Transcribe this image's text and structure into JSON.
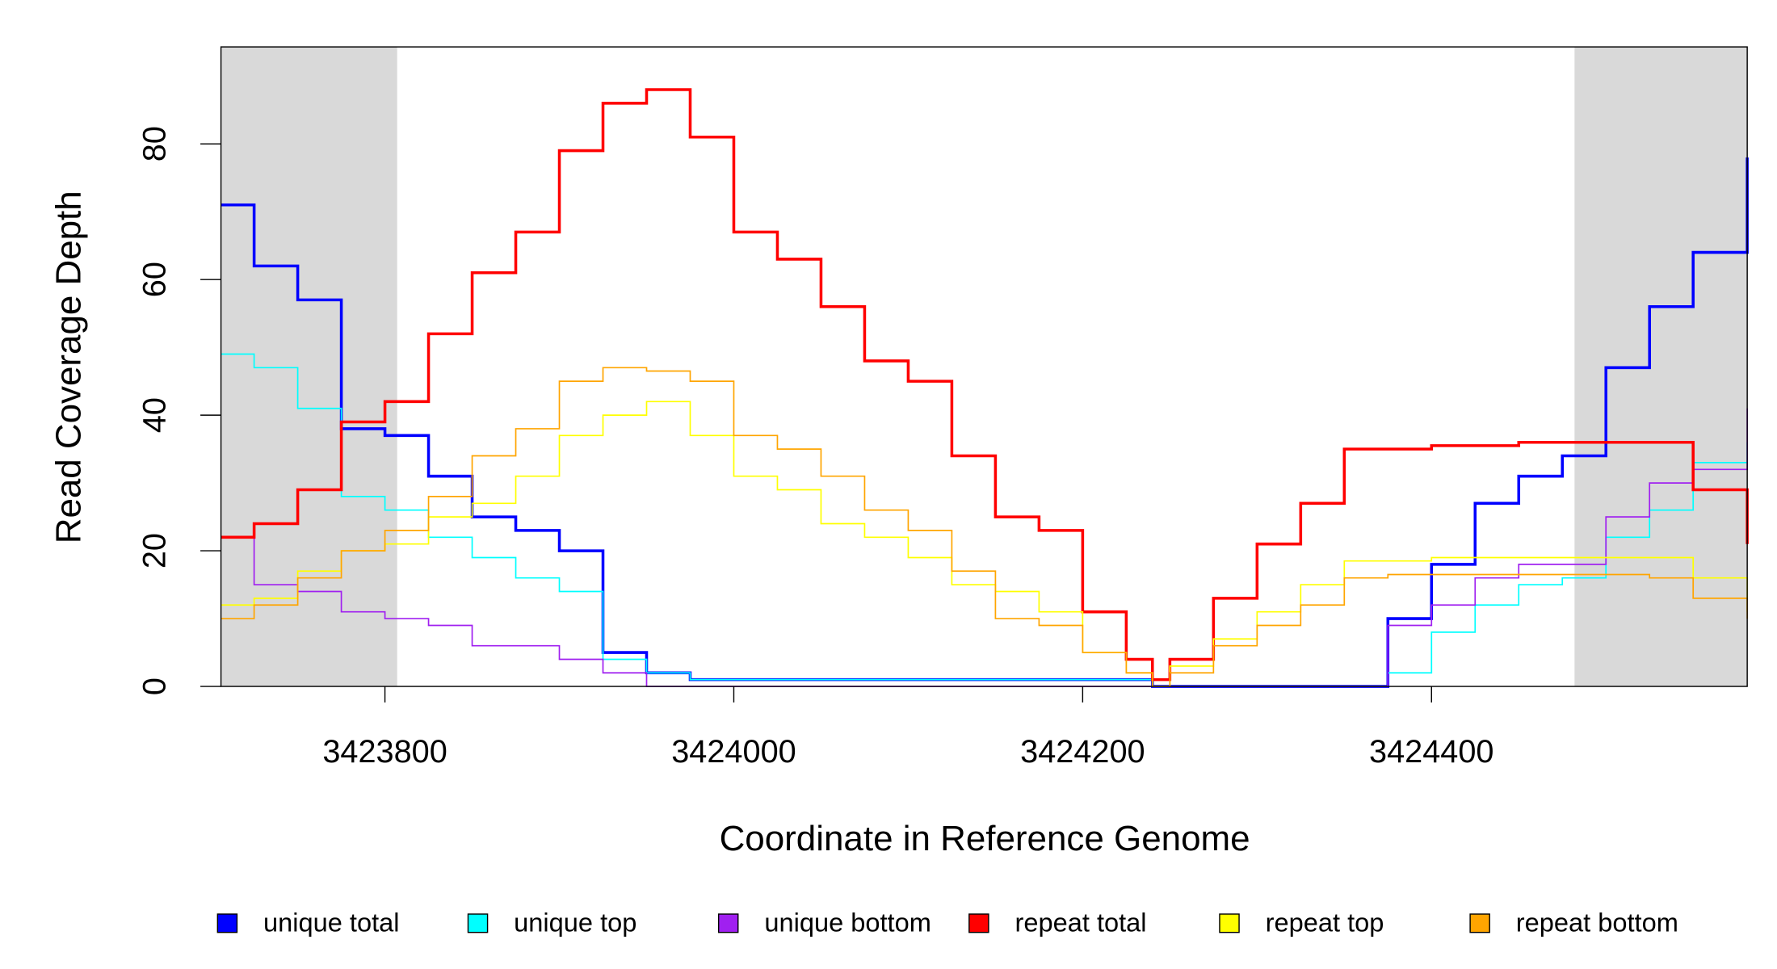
{
  "chart_data": {
    "type": "line",
    "step": true,
    "x_label": "Coordinate in Reference Genome",
    "y_label": "Read Coverage Depth",
    "xlim": [
      3423706,
      3424581
    ],
    "ylim": [
      0,
      94.3
    ],
    "xticks": [
      3423800,
      3424000,
      3424200,
      3424400
    ],
    "yticks": [
      0,
      20,
      40,
      60,
      80
    ],
    "highlight_color": "#d9d9d9",
    "highlight_regions": [
      [
        3423706,
        3423807
      ],
      [
        3424482,
        3424581
      ]
    ],
    "legend": "bottom",
    "x": [
      3423706,
      3423725,
      3423750,
      3423775,
      3423800,
      3423825,
      3423850,
      3423875,
      3423900,
      3423925,
      3423950,
      3423975,
      3424000,
      3424025,
      3424050,
      3424075,
      3424100,
      3424125,
      3424150,
      3424175,
      3424200,
      3424225,
      3424240,
      3424250,
      3424275,
      3424300,
      3424325,
      3424350,
      3424375,
      3424400,
      3424425,
      3424450,
      3424475,
      3424500,
      3424525,
      3424550,
      3424581
    ],
    "series": [
      {
        "name": "unique total",
        "color": "#0000ff",
        "width": 2.5,
        "values": [
          71,
          62,
          57,
          38,
          37,
          31,
          25,
          23,
          20,
          5,
          2,
          1,
          1,
          1,
          1,
          1,
          1,
          1,
          1,
          1,
          1,
          1,
          0,
          0,
          0,
          0,
          0,
          0,
          10,
          18,
          27,
          31,
          34,
          47,
          56,
          64,
          78
        ]
      },
      {
        "name": "unique top",
        "color": "#00ffff",
        "width": 1.2,
        "values": [
          49,
          47,
          41,
          28,
          26,
          22,
          19,
          16,
          14,
          4,
          2,
          1,
          1,
          1,
          1,
          1,
          1,
          1,
          1,
          1,
          1,
          1,
          0,
          0,
          0,
          0,
          0,
          0,
          2,
          8,
          12,
          15,
          16,
          22,
          26,
          33,
          36
        ]
      },
      {
        "name": "unique bottom",
        "color": "#a020f0",
        "width": 1.2,
        "values": [
          22,
          15,
          14,
          11,
          10,
          9,
          6,
          6,
          4,
          2,
          0,
          0,
          0,
          0,
          0,
          0,
          0,
          0,
          0,
          0,
          0,
          0,
          0,
          0,
          0,
          0,
          0,
          0,
          9,
          12,
          16,
          18,
          18,
          25,
          30,
          32,
          41
        ]
      },
      {
        "name": "repeat total",
        "color": "#ff0000",
        "width": 2.5,
        "values": [
          22,
          24,
          29,
          39,
          42,
          52,
          61,
          67,
          79,
          86,
          88,
          81,
          67,
          63,
          56,
          48,
          45,
          34,
          25,
          23,
          11,
          4,
          1,
          4,
          13,
          21,
          27,
          35,
          35,
          35.5,
          35.5,
          36,
          36,
          36,
          36,
          29,
          21
        ]
      },
      {
        "name": "repeat top",
        "color": "#ffff00",
        "width": 1.2,
        "values": [
          12,
          13,
          17,
          20,
          21,
          25,
          27,
          31,
          37,
          40,
          42,
          37,
          31,
          29,
          24,
          22,
          19,
          15,
          14,
          11,
          5,
          2,
          0,
          3,
          7,
          11,
          15,
          18.5,
          18.5,
          19,
          19,
          19,
          19,
          19,
          19,
          16,
          11
        ]
      },
      {
        "name": "repeat bottom",
        "color": "#ffa500",
        "width": 1.2,
        "values": [
          10,
          12,
          16,
          20,
          23,
          28,
          34,
          38,
          45,
          47,
          46.5,
          45,
          37,
          35,
          31,
          26,
          23,
          17,
          10,
          9,
          5,
          2,
          0,
          2,
          6,
          9,
          12,
          16,
          16.5,
          16.5,
          16.5,
          16.5,
          16.5,
          16.5,
          16,
          13,
          10
        ]
      }
    ]
  }
}
